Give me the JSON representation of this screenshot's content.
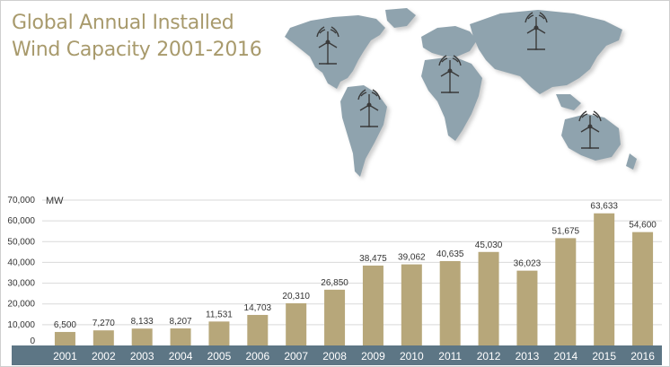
{
  "title": "Global Annual Installed Wind Capacity 2001-2016",
  "colors": {
    "title": "#a89a6c",
    "bar": "#b7a77a",
    "axis_band": "#5d7685",
    "map_land": "#8fa3ae",
    "gridline": "#d9d9d9",
    "turbine": "#3a3a3a"
  },
  "icons": [
    "world-map",
    "wind-turbine-icon"
  ],
  "chart_data": {
    "type": "bar",
    "title": "Global Annual Installed Wind Capacity 2001-2016",
    "ylabel": "MW",
    "xlabel": "",
    "categories": [
      "2001",
      "2002",
      "2003",
      "2004",
      "2005",
      "2006",
      "2007",
      "2008",
      "2009",
      "2010",
      "2011",
      "2012",
      "2013",
      "2014",
      "2015",
      "2016"
    ],
    "values": [
      6500,
      7270,
      8133,
      8207,
      11531,
      14703,
      20310,
      26850,
      38475,
      39062,
      40635,
      45030,
      36023,
      51675,
      63633,
      54600
    ],
    "value_labels": [
      "6,500",
      "7,270",
      "8,133",
      "8,207",
      "11,531",
      "14,703",
      "20,310",
      "26,850",
      "38,475",
      "39,062",
      "40,635",
      "45,030",
      "36,023",
      "51,675",
      "63,633",
      "54,600"
    ],
    "ylim": [
      0,
      70000
    ],
    "yticks": [
      0,
      10000,
      20000,
      30000,
      40000,
      50000,
      60000,
      70000
    ],
    "ytick_labels": [
      "0",
      "10,000",
      "20,000",
      "30,000",
      "40,000",
      "50,000",
      "60,000",
      "70,000"
    ],
    "grid": true,
    "legend": "none"
  }
}
